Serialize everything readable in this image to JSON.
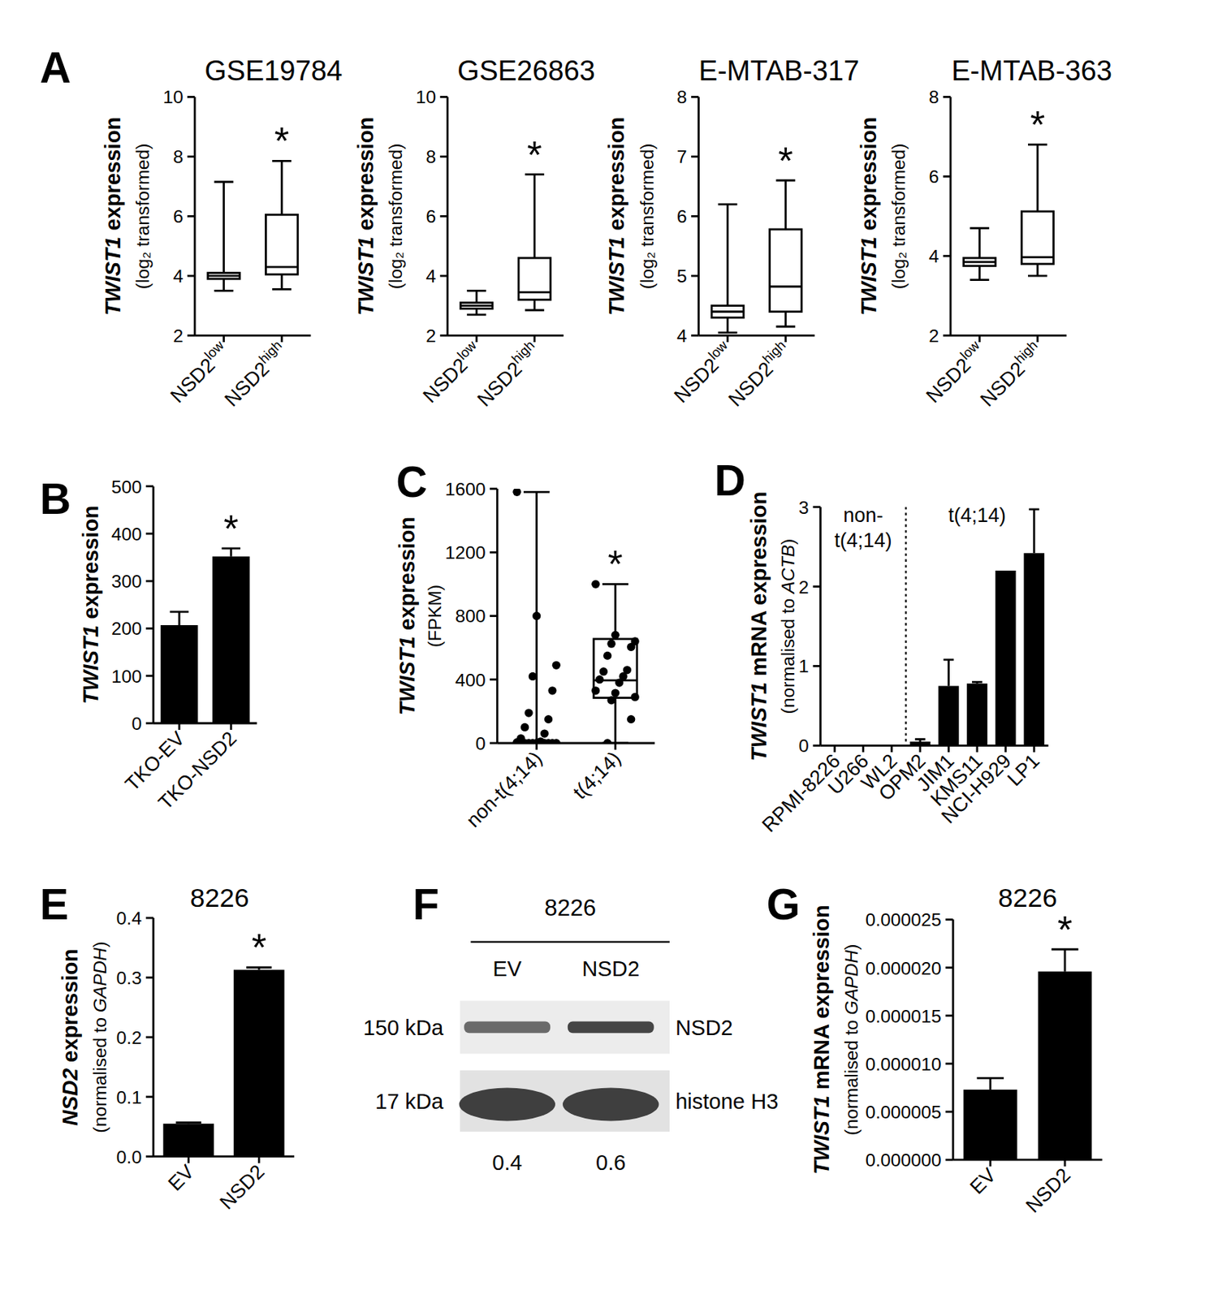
{
  "chart_data": [
    {
      "type": "box",
      "panel": "A",
      "title": "GSE19784",
      "ylabel": [
        "TWIST1 expression",
        "(log₂ transformed)"
      ],
      "categories": [
        "NSD2low",
        "NSD2high"
      ],
      "boxes": [
        {
          "min": 3.5,
          "q1": 3.9,
          "median": 4.0,
          "q3": 4.1,
          "max": 7.15
        },
        {
          "min": 3.55,
          "q1": 4.05,
          "median": 4.3,
          "q3": 6.05,
          "max": 7.85
        }
      ],
      "ylim": [
        2,
        10
      ],
      "yticks": [
        2,
        4,
        6,
        8,
        10
      ],
      "annotations": [
        {
          "text": "*",
          "index": 1
        }
      ]
    },
    {
      "type": "box",
      "title": "GSE26863",
      "ylabel": [
        "TWIST1 expression",
        "(log₂ transformed)"
      ],
      "categories": [
        "NSD2low",
        "NSD2high"
      ],
      "boxes": [
        {
          "min": 2.7,
          "q1": 2.9,
          "median": 3.0,
          "q3": 3.1,
          "max": 3.5
        },
        {
          "min": 2.85,
          "q1": 3.2,
          "median": 3.45,
          "q3": 4.6,
          "max": 7.4
        }
      ],
      "ylim": [
        2,
        10
      ],
      "yticks": [
        2,
        4,
        6,
        8,
        10
      ],
      "annotations": [
        {
          "text": "*",
          "index": 1
        }
      ]
    },
    {
      "type": "box",
      "title": "E-MTAB-317",
      "ylabel": [
        "TWIST1 expression",
        "(log₂ transformed)"
      ],
      "categories": [
        "NSD2low",
        "NSD2high"
      ],
      "boxes": [
        {
          "min": 4.05,
          "q1": 4.3,
          "median": 4.4,
          "q3": 4.5,
          "max": 6.2
        },
        {
          "min": 4.15,
          "q1": 4.4,
          "median": 4.82,
          "q3": 5.78,
          "max": 6.6
        }
      ],
      "ylim": [
        4,
        8
      ],
      "yticks": [
        4,
        5,
        6,
        7,
        8
      ],
      "annotations": [
        {
          "text": "*",
          "index": 1
        }
      ]
    },
    {
      "type": "box",
      "title": "E-MTAB-363",
      "ylabel": [
        "TWIST1 expression",
        "(log₂ transformed)"
      ],
      "categories": [
        "NSD2low",
        "NSD2high"
      ],
      "boxes": [
        {
          "min": 3.4,
          "q1": 3.75,
          "median": 3.85,
          "q3": 3.95,
          "max": 4.7
        },
        {
          "min": 3.5,
          "q1": 3.8,
          "median": 3.97,
          "q3": 5.12,
          "max": 6.8
        }
      ],
      "ylim": [
        2,
        8
      ],
      "yticks": [
        2,
        4,
        6,
        8
      ],
      "annotations": [
        {
          "text": "*",
          "index": 1
        }
      ]
    },
    {
      "type": "bar",
      "panel": "B",
      "ylabel": [
        "TWIST1 expression"
      ],
      "categories": [
        "TKO-EV",
        "TKO-NSD2"
      ],
      "values": [
        207,
        352
      ],
      "errors": [
        28,
        17
      ],
      "color": "#000000",
      "ylim": [
        0,
        500
      ],
      "yticks": [
        0,
        100,
        200,
        300,
        400,
        500
      ],
      "annotations": [
        {
          "text": "*",
          "index": 1
        }
      ]
    },
    {
      "type": "box",
      "panel": "C",
      "ylabel": [
        "TWIST1 expression",
        "(FPKM)"
      ],
      "categories": [
        "non-t(4;14)",
        "t(4;14)"
      ],
      "boxes": [
        {
          "min": 0,
          "q1": 0,
          "median": 0,
          "q3": 5,
          "max": 1580
        },
        {
          "min": 0,
          "q1": 285,
          "median": 395,
          "q3": 655,
          "max": 1000
        }
      ],
      "points": [
        [
          1580,
          800,
          490,
          420,
          330,
          190,
          150,
          100,
          60,
          30,
          10,
          5,
          0,
          0,
          0,
          0,
          0,
          0,
          0,
          0,
          0,
          0,
          0,
          0
        ],
        [
          1000,
          680,
          640,
          625,
          605,
          550,
          460,
          450,
          420,
          400,
          380,
          330,
          315,
          290,
          270,
          150,
          0
        ]
      ],
      "ylim": [
        0,
        1600
      ],
      "yticks": [
        0,
        400,
        800,
        1200,
        1600
      ],
      "annotations": [
        {
          "text": "*",
          "index": 1
        }
      ]
    },
    {
      "type": "bar",
      "panel": "D",
      "ylabel": [
        "TWIST1 mRNA expression",
        "(normalised to ACTB)"
      ],
      "categories": [
        "RPMI-8226",
        "U266",
        "WL2",
        "OPM2",
        "JIM1",
        "KMS11",
        "NCI-H929",
        "LP1"
      ],
      "values": [
        0,
        0,
        0,
        0.05,
        0.75,
        0.78,
        2.2,
        2.42
      ],
      "errors": [
        null,
        null,
        null,
        0.03,
        0.33,
        0.02,
        null,
        0.55
      ],
      "color": "#000000",
      "groups": [
        {
          "label": [
            "non-",
            "t(4;14)"
          ],
          "from": 0,
          "to": 2
        },
        {
          "label": [
            "t(4;14)"
          ],
          "from": 3,
          "to": 7
        }
      ],
      "ylim": [
        0,
        3
      ],
      "yticks": [
        0,
        1,
        2,
        3
      ]
    },
    {
      "type": "bar",
      "panel": "E",
      "title": "8226",
      "ylabel": [
        "NSD2 expression",
        "(normalised to GAPDH)"
      ],
      "categories": [
        "EV",
        "NSD2"
      ],
      "values": [
        0.055,
        0.313
      ],
      "errors": [
        0.002,
        0.004
      ],
      "color": "#000000",
      "ylim": [
        0,
        0.4
      ],
      "yticks": [
        {
          "value": 0,
          "label": "0.0"
        },
        0.1,
        0.2,
        0.3,
        0.4
      ],
      "annotations": [
        {
          "text": "*",
          "index": 1
        }
      ]
    },
    {
      "type": "blot",
      "panel": "F",
      "title": "8226",
      "lanes": [
        "EV",
        "NSD2"
      ],
      "bands": [
        {
          "name": "NSD2",
          "size": "150 kDa"
        },
        {
          "name": "histone H3",
          "size": "17 kDa"
        }
      ],
      "values": [
        0.4,
        0.6
      ]
    },
    {
      "type": "bar",
      "panel": "G",
      "title": "8226",
      "ylabel": [
        "TWIST1 mRNA expression",
        "(normalised to GAPDH)"
      ],
      "categories": [
        "EV",
        "NSD2"
      ],
      "values": [
        7.3e-06,
        1.96e-05
      ],
      "errors": [
        1.2e-06,
        2.3e-06
      ],
      "color": "#000000",
      "ylim": [
        0,
        2.5e-05
      ],
      "yticks": [
        {
          "value": 0,
          "label": "0.000000"
        },
        {
          "value": 5e-06,
          "label": "0.000005"
        },
        {
          "value": 1e-05,
          "label": "0.000010"
        },
        {
          "value": 1.5e-05,
          "label": "0.000015"
        },
        {
          "value": 2e-05,
          "label": "0.000020"
        },
        {
          "value": 2.5e-05,
          "label": "0.000025"
        }
      ],
      "annotations": [
        {
          "text": "*",
          "index": 1
        }
      ]
    }
  ]
}
